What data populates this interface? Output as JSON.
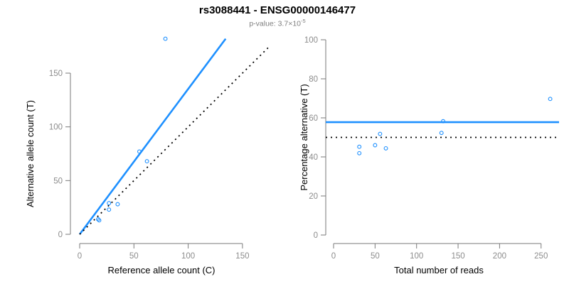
{
  "header": {
    "title": "rs3088441 - ENSG00000146477",
    "subtitle": {
      "prefix": "p-value: 3.7",
      "times": "×",
      "base": "10",
      "exponent": "-5"
    }
  },
  "palette": {
    "accent_blue": "#1E90FF",
    "line_black": "#000000",
    "axis_gray": "#7a7a7a",
    "tick_label_gray": "#8c8c8c",
    "axis_title_black": "#000000",
    "subtitle_gray": "#7f7f7f",
    "background": "#ffffff"
  },
  "chart_data": [
    {
      "name": "allele-counts-scatter",
      "type": "scatter",
      "xlabel": "Reference allele count (C)",
      "ylabel": "Alternative allele count (T)",
      "x_ticks": [
        0,
        50,
        100,
        150
      ],
      "y_ticks": [
        0,
        50,
        100,
        150
      ],
      "xlim": [
        0,
        175
      ],
      "ylim": [
        0,
        185
      ],
      "grid": false,
      "legend": "none",
      "marker": "open-circle",
      "points": [
        {
          "x": 17,
          "y": 14
        },
        {
          "x": 18,
          "y": 13
        },
        {
          "x": 27,
          "y": 23
        },
        {
          "x": 27,
          "y": 29
        },
        {
          "x": 35,
          "y": 28
        },
        {
          "x": 55,
          "y": 77
        },
        {
          "x": 62,
          "y": 68
        },
        {
          "x": 79,
          "y": 182
        }
      ],
      "lines": [
        {
          "role": "fitted-allelic-ratio",
          "style": "solid",
          "color": "#1E90FF",
          "slope": 1.353,
          "intercept": 0,
          "x_from": 0,
          "x_to": 134.5
        },
        {
          "role": "identity-line",
          "style": "dotted",
          "color": "#000000",
          "slope": 1,
          "intercept": 0,
          "x_from": 0,
          "x_to": 174
        }
      ]
    },
    {
      "name": "percentage-vs-coverage-scatter",
      "type": "scatter",
      "xlabel": "Total number of reads",
      "ylabel": "Percentage alternative (T)",
      "x_ticks": [
        0,
        50,
        100,
        150,
        200,
        250
      ],
      "y_ticks": [
        0,
        20,
        40,
        60,
        80,
        100
      ],
      "xlim": [
        0,
        272
      ],
      "ylim": [
        0,
        100
      ],
      "grid": false,
      "legend": "none",
      "marker": "open-circle",
      "points": [
        {
          "x": 31,
          "y": 45.2
        },
        {
          "x": 31,
          "y": 41.9
        },
        {
          "x": 50,
          "y": 46.0
        },
        {
          "x": 56,
          "y": 51.8
        },
        {
          "x": 63,
          "y": 44.4
        },
        {
          "x": 130,
          "y": 52.3
        },
        {
          "x": 132,
          "y": 58.3
        },
        {
          "x": 261,
          "y": 69.7
        }
      ],
      "lines": [
        {
          "role": "mean-percentage",
          "style": "solid",
          "color": "#1E90FF",
          "h": 57.8
        },
        {
          "role": "null-expectation",
          "style": "dotted",
          "color": "#000000",
          "h": 50
        }
      ]
    }
  ]
}
